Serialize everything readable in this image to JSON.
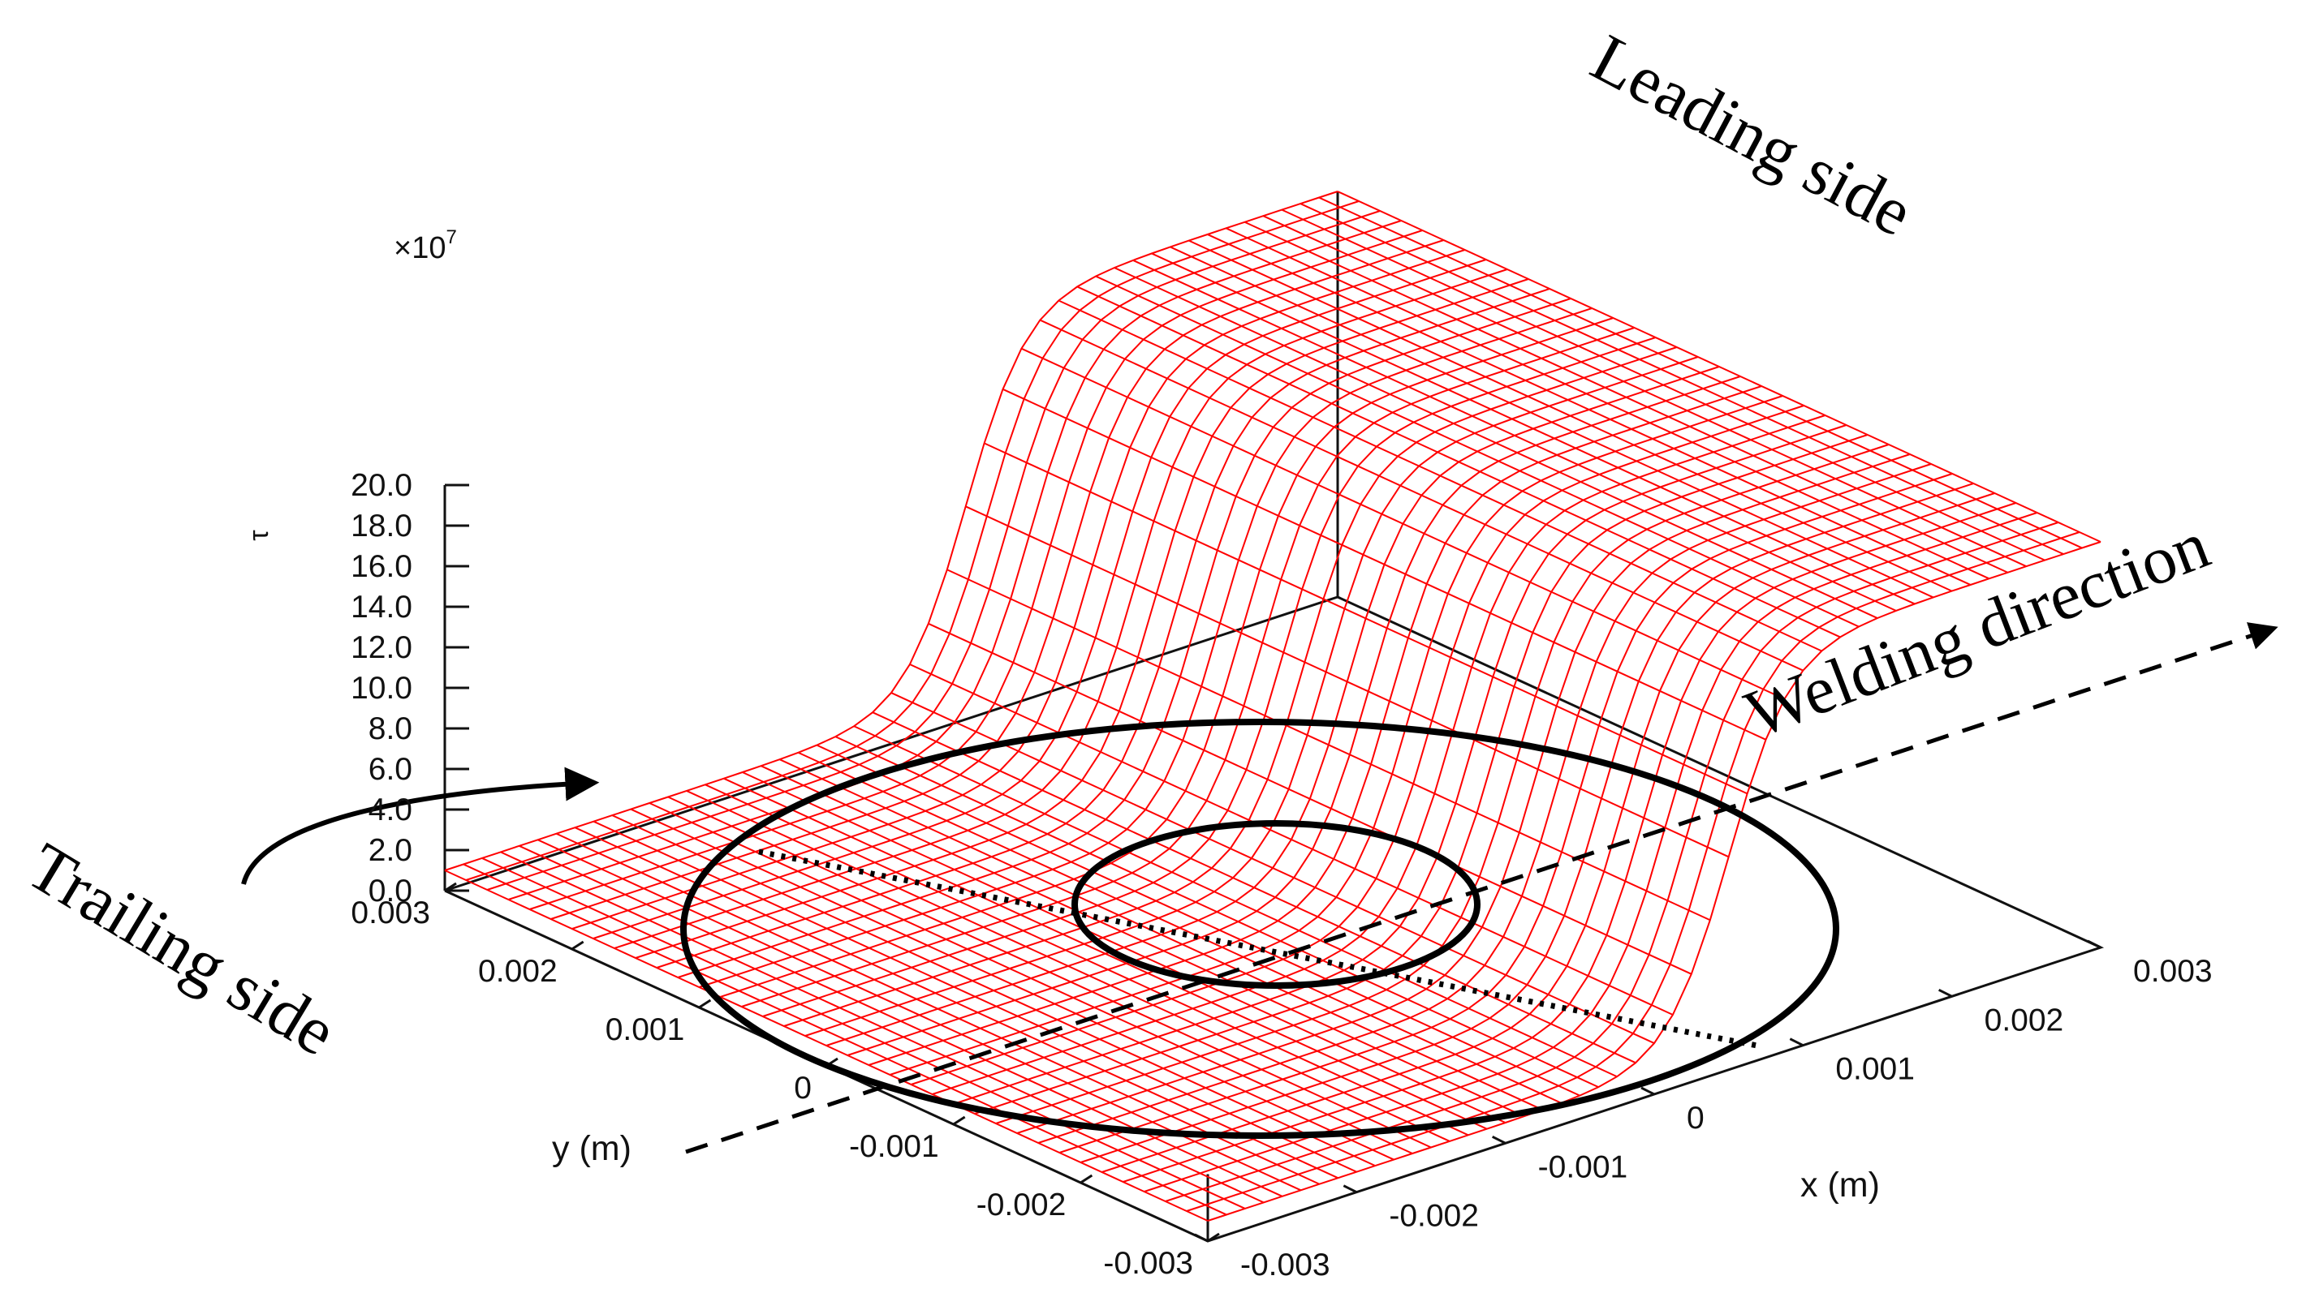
{
  "chart_data": {
    "type": "surface",
    "title": "",
    "zlabel": "τ",
    "z_multiplier": "×10",
    "z_multiplier_exp": "7",
    "xlabel": "x (m)",
    "ylabel": "y (m)",
    "xlim": [
      -0.003,
      0.003
    ],
    "ylim": [
      -0.003,
      0.003
    ],
    "zlim": [
      0.0,
      20.0
    ],
    "x_ticks": [
      "-0.003",
      "-0.002",
      "-0.001",
      "0",
      "0.001",
      "0.002",
      "0.003"
    ],
    "y_ticks": [
      "0.003",
      "0.002",
      "0.001",
      "0",
      "-0.001",
      "-0.002",
      "-0.003"
    ],
    "z_ticks": [
      "20.0",
      "18.0",
      "16.0",
      "14.0",
      "12.0",
      "10.0",
      "8.0",
      "6.0",
      "4.0",
      "2.0",
      "0.0"
    ],
    "surface": {
      "color": "#ff0000",
      "grid_x": 48,
      "grid_y": 36,
      "trailing_value": 1.0,
      "leading_value": 20.0,
      "transition_center": 0.0005,
      "transition_width": 0.00045
    },
    "overlays": {
      "outer_circle_radius": 0.0025,
      "inner_circle_radius": 0.0012,
      "line_color": "#000000"
    },
    "annotations": {
      "leading": "Leading side",
      "trailing": "Trailing side",
      "welding": "Welding direction"
    }
  }
}
